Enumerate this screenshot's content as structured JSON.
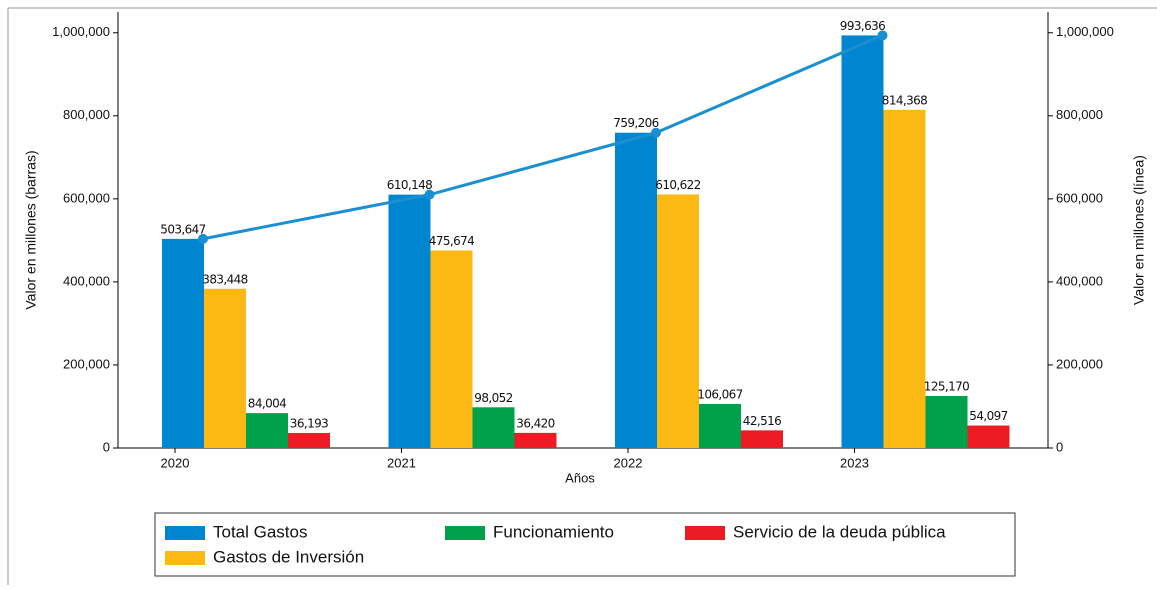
{
  "chart_data": {
    "type": "bar",
    "categories": [
      "2020",
      "2021",
      "2022",
      "2023"
    ],
    "series": [
      {
        "name": "Total Gastos",
        "color": "#0086d1",
        "values": [
          503647,
          610148,
          759206,
          993636
        ],
        "value_labels": [
          "503,647",
          "610,148",
          "759,206",
          "993,636"
        ]
      },
      {
        "name": "Gastos de Inversión",
        "color": "#fdb913",
        "values": [
          383448,
          475674,
          610622,
          814368
        ],
        "value_labels": [
          "383,448",
          "475,674",
          "610,622",
          "814,368"
        ]
      },
      {
        "name": "Funcionamiento",
        "color": "#00a14b",
        "values": [
          84004,
          98052,
          106067,
          125170
        ],
        "value_labels": [
          "84,004",
          "98,052",
          "106,067",
          "125,170"
        ]
      },
      {
        "name": "Servicio de la deuda pública",
        "color": "#ed1c24",
        "values": [
          36193,
          36420,
          42516,
          54097
        ],
        "value_labels": [
          "36,193",
          "36,420",
          "42,516",
          "54,097"
        ]
      }
    ],
    "line": {
      "type": "line",
      "axis": "y2",
      "color": "#1a8fd1",
      "values": [
        503647,
        610148,
        759206,
        993636
      ]
    },
    "xlabel": "Años",
    "ylabel": "Valor en millones (barras)",
    "y2label": "Valor en millones (línea)",
    "ylim": [
      0,
      1050000
    ],
    "yticks": [
      0,
      {
        "value": 200000,
        "label": "200,000"
      },
      {
        "value": 400000,
        "label": "400,000"
      },
      {
        "value": 600000,
        "label": "600,000"
      },
      {
        "value": 800000,
        "label": "800,000"
      },
      {
        "value": 1000000,
        "label": "1,000,000"
      }
    ],
    "y2lim": [
      0,
      1050000
    ],
    "y2ticks": [
      0,
      {
        "value": 200000,
        "label": "200,000"
      },
      {
        "value": 400000,
        "label": "400,000"
      },
      {
        "value": 600000,
        "label": "600,000"
      },
      {
        "value": 800000,
        "label": "800,000"
      },
      {
        "value": 1000000,
        "label": "1,000,000"
      }
    ],
    "legend": "bottom"
  }
}
